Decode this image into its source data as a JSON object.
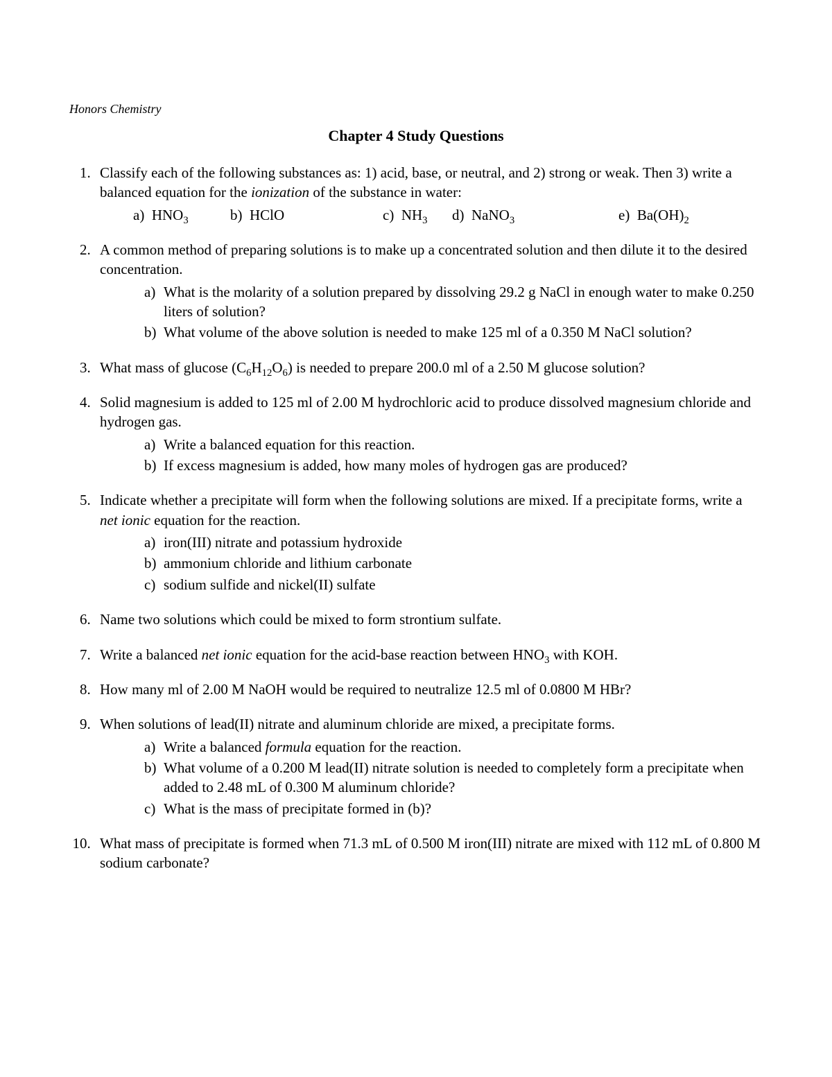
{
  "course": "Honors Chemistry",
  "title": "Chapter 4 Study Questions",
  "q1": {
    "stem_pre": "Classify each of the following substances as: 1) acid, base, or neutral, and 2) strong or weak. Then 3) write a balanced equation for the ",
    "stem_ital": "ionization",
    "stem_post": " of the substance in water:",
    "a": "HNO",
    "b": "HClO",
    "c": "NH",
    "d": "NaNO",
    "e": "Ba(OH)"
  },
  "q2": {
    "stem": "A common method of preparing solutions is to make up a concentrated solution and then dilute it to the desired concentration.",
    "a": "What is the molarity of a solution prepared by dissolving 29.2 g NaCl in enough water to make 0.250 liters of solution?",
    "b": "What volume of the above solution is needed to make 125 ml of a 0.350 M NaCl solution?"
  },
  "q3": {
    "pre": "What mass of glucose (C",
    "mid1": "H",
    "mid2": "O",
    "post": ") is needed to prepare 200.0 ml of a 2.50 M glucose solution?"
  },
  "q4": {
    "stem": "Solid magnesium is added to 125 ml of 2.00 M hydrochloric acid to produce dissolved magnesium chloride and hydrogen gas.",
    "a": "Write a balanced equation for this reaction.",
    "b": "If excess magnesium is added, how many moles of hydrogen gas are produced?"
  },
  "q5": {
    "stem_pre": "Indicate whether a precipitate will form when the following solutions are mixed.  If a precipitate forms, write a ",
    "stem_ital": "net ionic",
    "stem_post": " equation for the reaction.",
    "a": "iron(III) nitrate and potassium hydroxide",
    "b": "ammonium chloride and lithium carbonate",
    "c": "sodium sulfide and nickel(II) sulfate"
  },
  "q6": "Name two solutions which could be mixed to form strontium sulfate.",
  "q7": {
    "pre": "Write a balanced ",
    "ital": "net ionic",
    "post": " equation for the acid-base reaction between HNO",
    "tail": " with KOH."
  },
  "q8": "How many ml of 2.00 M NaOH would be required to neutralize 12.5 ml of 0.0800 M HBr?",
  "q9": {
    "stem": "When solutions of lead(II) nitrate and aluminum chloride are mixed, a precipitate forms.",
    "a_pre": "Write a balanced ",
    "a_ital": "formula",
    "a_post": " equation for the reaction.",
    "b": "What volume of a 0.200 M lead(II) nitrate solution is needed to completely form a precipitate when added to 2.48 mL of 0.300 M aluminum chloride?",
    "c": "What is the mass of precipitate formed in (b)?"
  },
  "q10": "What mass of precipitate is formed when 71.3 mL of 0.500 M iron(III) nitrate are mixed with 112 mL of 0.800 M sodium carbonate?",
  "letters": {
    "a": "a)",
    "b": "b)",
    "c": "c)",
    "d": "d)",
    "e": "e)"
  }
}
